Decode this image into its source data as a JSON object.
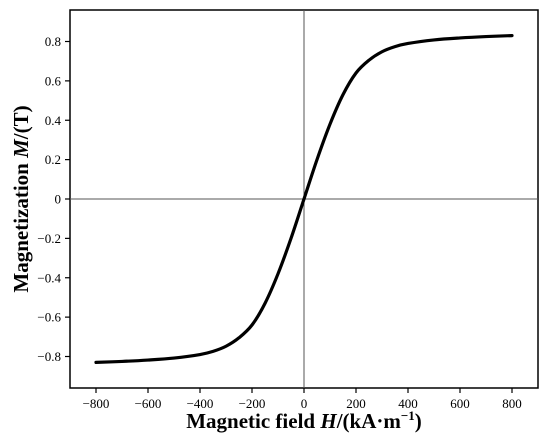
{
  "chart_data": {
    "type": "line",
    "title": "",
    "xlabel": {
      "text": "Magnetic field ",
      "italic": "H",
      "unit_open": "/(kA·m",
      "superscript": "−1",
      "unit_close": ")"
    },
    "ylabel": {
      "text": "Magnetization ",
      "italic": "M",
      "unit": "/(T)"
    },
    "xlim": [
      -900,
      900
    ],
    "ylim": [
      -0.96,
      0.96
    ],
    "xticks": [
      -800,
      -600,
      -400,
      -200,
      0,
      200,
      400,
      600,
      800
    ],
    "xtick_labels": [
      "−800",
      "−600",
      "−400",
      "−200",
      "0",
      "200",
      "400",
      "600",
      "800"
    ],
    "yticks": [
      -0.8,
      -0.6,
      -0.4,
      -0.2,
      0,
      0.2,
      0.4,
      0.6,
      0.8
    ],
    "ytick_labels": [
      "−0.8",
      "−0.6",
      "−0.4",
      "−0.2",
      "0",
      "0.2",
      "0.4",
      "0.6",
      "0.8"
    ],
    "grid": false,
    "reference_lines": {
      "x": 0,
      "y": 0
    },
    "series": [
      {
        "color": "#000000",
        "x": [
          -800,
          -700,
          -600,
          -500,
          -400,
          -350,
          -300,
          -250,
          -200,
          -150,
          -100,
          -50,
          0,
          50,
          100,
          150,
          200,
          250,
          300,
          350,
          400,
          500,
          600,
          700,
          800
        ],
        "y": [
          -0.83,
          -0.825,
          -0.818,
          -0.808,
          -0.79,
          -0.774,
          -0.748,
          -0.705,
          -0.64,
          -0.53,
          -0.38,
          -0.2,
          0.0,
          0.2,
          0.38,
          0.53,
          0.64,
          0.705,
          0.748,
          0.774,
          0.79,
          0.808,
          0.818,
          0.825,
          0.83
        ]
      }
    ]
  }
}
